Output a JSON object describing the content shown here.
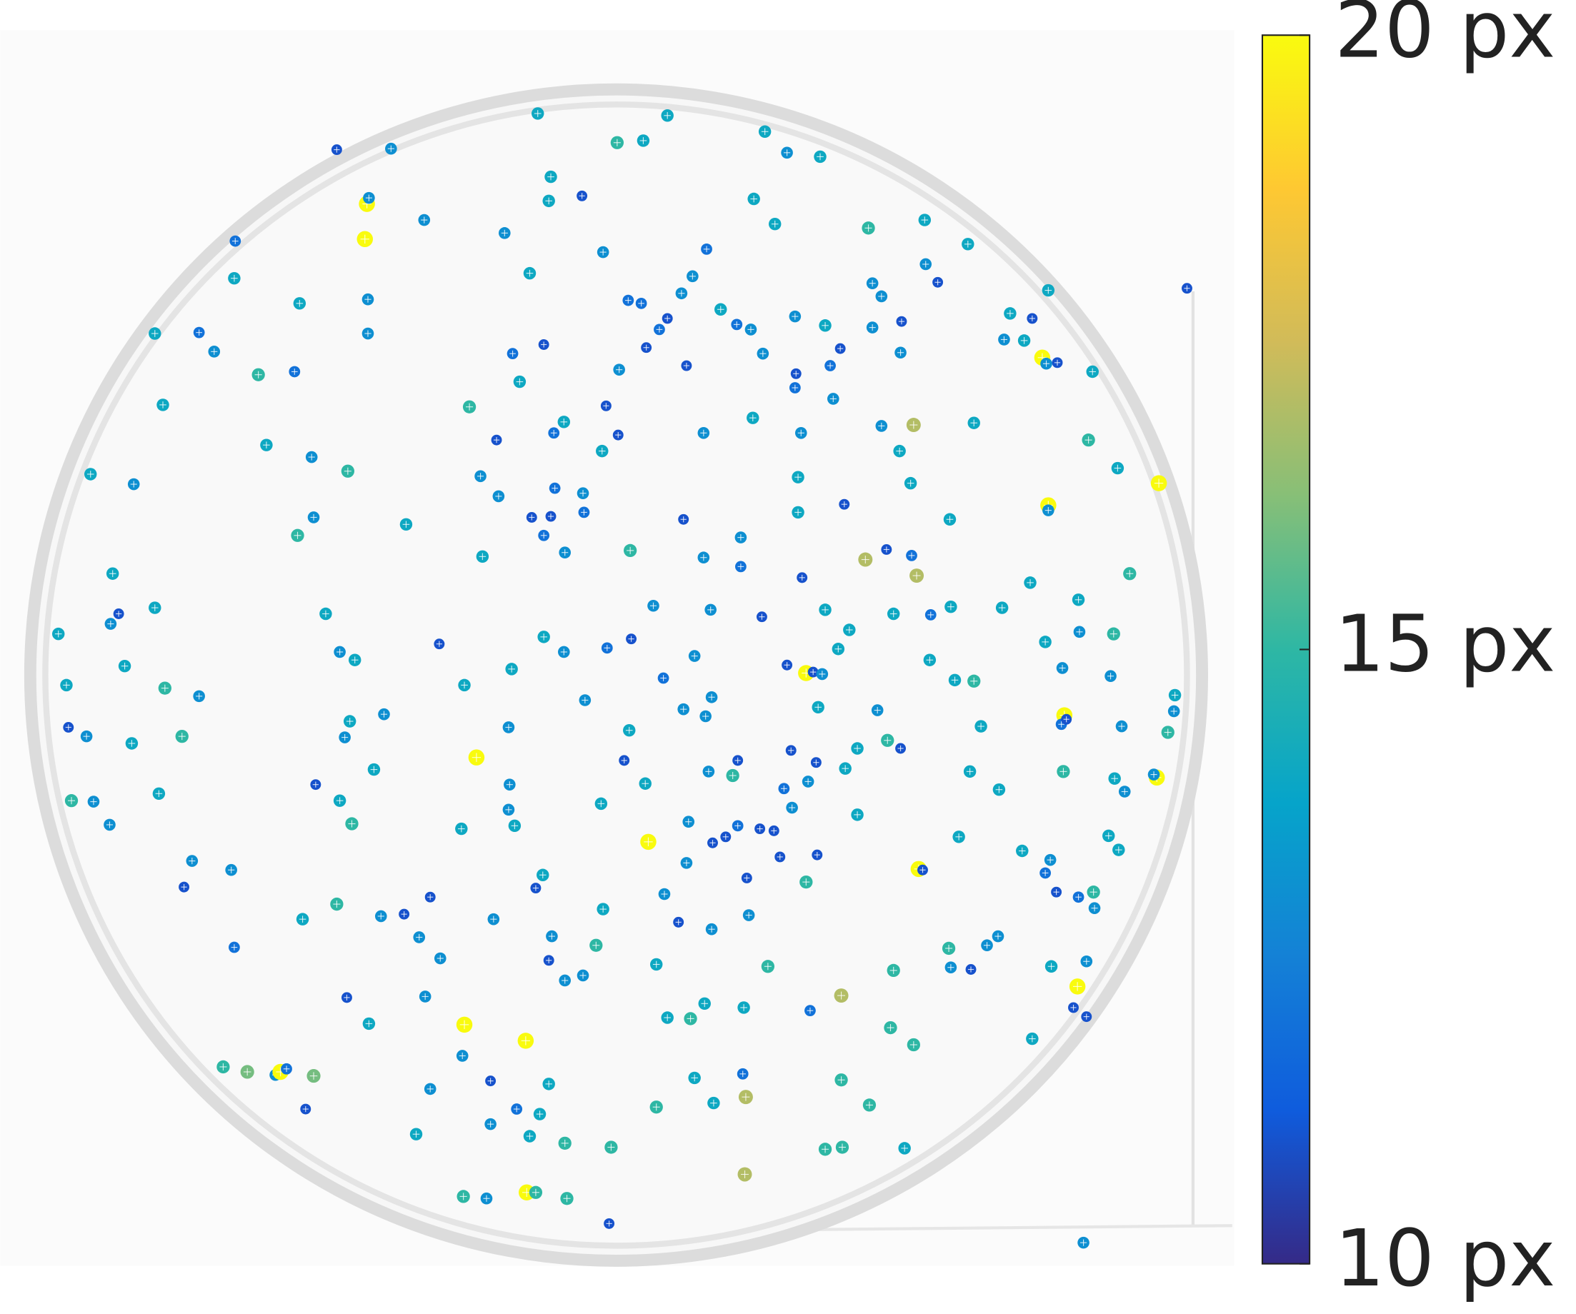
{
  "chart_data": {
    "type": "scatter",
    "y_reversed": true,
    "xlim": [
      0,
      1230
    ],
    "ylim": [
      0,
      1260
    ],
    "colorbar_lim": [
      10,
      20
    ],
    "colorbar_ticks": [
      {
        "value": 10,
        "label": "10 px"
      },
      {
        "value": 15,
        "label": "15 px"
      },
      {
        "value": 20,
        "label": "20 px"
      }
    ],
    "colormap": [
      "#352a87",
      "#0f5cdd",
      "#1481d6",
      "#06a4ca",
      "#2eb7a4",
      "#87bf77",
      "#d1bb59",
      "#fec832",
      "#f9fb0e"
    ],
    "x": [
      535,
      664,
      614,
      640,
      761,
      783,
      816,
      335,
      389,
      548,
      546,
      579,
      750,
      365,
      367,
      363,
      422,
      502,
      234,
      600,
      771,
      864,
      920,
      963,
      921,
      933,
      703,
      689,
      527,
      233,
      298,
      366,
      366,
      154,
      198,
      213,
      257,
      293,
      162,
      625,
      638,
      664,
      656,
      643,
      678,
      717,
      733,
      747,
      759,
      791,
      821,
      836,
      826,
      868,
      877,
      868,
      897,
      896,
      1005,
      1027,
      1019,
      999,
      1043,
      1037,
      1041,
      1052,
      1087,
      1181,
      541,
      510,
      517,
      616,
      683,
      792,
      791,
      829,
      749,
      797,
      467,
      561,
      551,
      603,
      615,
      599,
      494,
      700,
      909,
      877,
      895,
      969,
      1083,
      1112,
      1153,
      1043,
      1043,
      906,
      945,
      346,
      310,
      265,
      90,
      133,
      478,
      496,
      552,
      580,
      529,
      548,
      581,
      541,
      562,
      680,
      794,
      840,
      794,
      737,
      627,
      700,
      737,
      480,
      404,
      312,
      296,
      861,
      882,
      907,
      912,
      798,
      112,
      118,
      110,
      154,
      58,
      124,
      66,
      164,
      198,
      68,
      86,
      131,
      181,
      71,
      93,
      109,
      158,
      324,
      338,
      353,
      437,
      541,
      561,
      604,
      628,
      650,
      707,
      758,
      821,
      845,
      834,
      889,
      926,
      946,
      997,
      1025,
      1073,
      1124,
      1074,
      1040,
      1057,
      1108,
      1105,
      1169,
      1168,
      1162,
      1116,
      1059,
      1056,
      1061,
      1151,
      1148,
      1109,
      1119,
      509,
      462,
      582,
      626,
      660,
      691,
      708,
      680,
      702,
      802,
      783,
      809,
      818,
      814,
      873,
      883,
      896,
      853,
      950,
      969,
      925,
      976,
      965,
      994,
      1058,
      348,
      343,
      382,
      506,
      474,
      621,
      642,
      734,
      705,
      729,
      787,
      812,
      804,
      780,
      788,
      841,
      853,
      372,
      314,
      338,
      350,
      507,
      506,
      512,
      459,
      598,
      685,
      645,
      709,
      722,
      734,
      756,
      770,
      776,
      813,
      683,
      743,
      802,
      914,
      918,
      954,
      1017,
      1103,
      1113,
      1045,
      1040,
      1051,
      1073,
      1088,
      1089,
      191,
      230,
      183,
      540,
      533,
      428,
      600,
      661,
      675,
      708,
      745,
      301,
      335,
      379,
      402,
      417,
      491,
      549,
      593,
      233,
      438,
      546,
      562,
      580,
      653,
      764,
      889,
      944,
      946,
      966,
      982,
      993,
      1046,
      1081,
      1072,
      1068,
      1081,
      345,
      423,
      367,
      462,
      523,
      664,
      687,
      701,
      740,
      806,
      837,
      886,
      909,
      1027,
      460,
      222,
      246,
      274,
      279,
      285,
      312,
      428,
      488,
      546,
      691,
      739,
      837,
      742,
      304,
      514,
      537,
      488,
      653,
      710,
      865,
      414,
      527,
      562,
      608,
      821,
      838,
      900,
      741,
      461,
      484,
      524,
      533,
      564,
      606,
      1078
    ],
    "y": [
      113,
      115,
      142,
      140,
      131,
      152,
      156,
      149,
      148,
      176,
      200,
      195,
      198,
      203,
      197,
      238,
      219,
      232,
      240,
      251,
      223,
      227,
      219,
      243,
      263,
      281,
      248,
      275,
      272,
      277,
      302,
      298,
      332,
      332,
      331,
      350,
      373,
      370,
      403,
      299,
      302,
      317,
      328,
      346,
      292,
      308,
      323,
      328,
      352,
      315,
      324,
      347,
      364,
      282,
      295,
      326,
      320,
      351,
      312,
      317,
      339,
      338,
      289,
      356,
      362,
      361,
      370,
      287,
      343,
      352,
      380,
      368,
      364,
      372,
      386,
      397,
      416,
      431,
      405,
      420,
      431,
      404,
      433,
      449,
      438,
      431,
      423,
      424,
      449,
      421,
      438,
      466,
      481,
      503,
      508,
      481,
      517,
      469,
      455,
      443,
      472,
      482,
      474,
      494,
      486,
      491,
      515,
      514,
      510,
      533,
      550,
      517,
      475,
      502,
      510,
      535,
      548,
      555,
      564,
      554,
      522,
      515,
      533,
      557,
      547,
      553,
      573,
      575,
      571,
      611,
      621,
      605,
      631,
      663,
      682,
      685,
      693,
      724,
      733,
      740,
      733,
      797,
      798,
      821,
      790,
      611,
      649,
      657,
      641,
      634,
      649,
      645,
      636,
      603,
      607,
      614,
      607,
      627,
      646,
      611,
      612,
      604,
      605,
      580,
      597,
      571,
      629,
      639,
      665,
      631,
      673,
      692,
      708,
      729,
      723,
      712,
      721,
      716,
      774,
      771,
      775,
      788,
      666,
      682,
      697,
      727,
      675,
      653,
      694,
      706,
      713,
      670,
      662,
      669,
      671,
      704,
      707,
      737,
      745,
      745,
      677,
      678,
      657,
      723,
      768,
      786,
      768,
      718,
      734,
      711,
      724,
      754,
      757,
      780,
      757,
      768,
      772,
      747,
      759,
      778,
      785,
      804,
      765,
      811,
      766,
      781,
      797,
      820,
      781,
      806,
      822,
      825,
      800,
      818,
      838,
      839,
      833,
      822,
      825,
      827,
      853,
      851,
      859,
      874,
      878,
      865,
      866,
      833,
      847,
      832,
      846,
      856,
      869,
      888,
      893,
      888,
      904,
      857,
      866,
      883,
      871,
      884,
      893,
      905,
      890,
      918,
      925,
      911,
      915,
      900,
      912,
      910,
      933,
      915,
      932,
      941,
      943,
      954,
      956,
      976,
      971,
      960,
      962,
      966,
      944,
      963,
      965,
      941,
      932,
      962,
      957,
      982,
      1003,
      1012,
      993,
      992,
      1019,
      1020,
      1036,
      1013,
      1014,
      999,
      1003,
      1006,
      991,
      1023,
      1040,
      1034,
      1051,
      1062,
      1067,
      1070,
      1067,
      1064,
      1071,
      1084,
      1076,
      1079,
      1073,
      1069,
      1075,
      1092,
      1104,
      1104,
      1109,
      1119,
      1102,
      1098,
      1100,
      1129,
      1131,
      1138,
      1142,
      1144,
      1142,
      1143,
      1169,
      1191,
      1193,
      1187,
      1187,
      1193,
      1218,
      1237
    ],
    "values": [
      14,
      14,
      15,
      14,
      14,
      13,
      14,
      11,
      13,
      14,
      14,
      11,
      14,
      20,
      13,
      20,
      13,
      13,
      12,
      13,
      14,
      15,
      14,
      14,
      13,
      11,
      12,
      13,
      14,
      14,
      14,
      13,
      13,
      14,
      12,
      13,
      15,
      12,
      14,
      12,
      12,
      11,
      12,
      11,
      13,
      14,
      12,
      13,
      13,
      13,
      14,
      11,
      12,
      13,
      13,
      13,
      11,
      13,
      14,
      11,
      14,
      13,
      14,
      20,
      13,
      11,
      14,
      11,
      11,
      12,
      14,
      13,
      11,
      11,
      12,
      13,
      14,
      13,
      15,
      14,
      12,
      11,
      11,
      14,
      11,
      13,
      17,
      13,
      14,
      14,
      15,
      14,
      20,
      20,
      13,
      14,
      14,
      15,
      13,
      14,
      14,
      13,
      13,
      13,
      12,
      13,
      11,
      11,
      12,
      12,
      13,
      11,
      14,
      11,
      14,
      13,
      15,
      13,
      12,
      14,
      14,
      13,
      15,
      17,
      11,
      12,
      17,
      11,
      14,
      11,
      13,
      14,
      14,
      14,
      14,
      15,
      13,
      11,
      13,
      14,
      15,
      15,
      13,
      13,
      14,
      14,
      13,
      14,
      11,
      14,
      13,
      12,
      11,
      13,
      13,
      11,
      14,
      14,
      14,
      14,
      12,
      14,
      14,
      14,
      14,
      15,
      13,
      14,
      13,
      15,
      13,
      14,
      13,
      15,
      13,
      20,
      12,
      11,
      20,
      13,
      14,
      13,
      14,
      14,
      13,
      14,
      12,
      13,
      13,
      13,
      13,
      20,
      11,
      11,
      13,
      14,
      13,
      15,
      11,
      14,
      14,
      15,
      14,
      14,
      14,
      14,
      15,
      14,
      13,
      13,
      13,
      20,
      11,
      14,
      11,
      13,
      15,
      11,
      11,
      13,
      12,
      13,
      14,
      14,
      14,
      11,
      14,
      15,
      13,
      13,
      14,
      14,
      14,
      13,
      20,
      11,
      11,
      12,
      11,
      11,
      11,
      11,
      13,
      11,
      15,
      20,
      11,
      14,
      14,
      14,
      14,
      13,
      12,
      11,
      12,
      15,
      13,
      13,
      13,
      11,
      14,
      11,
      11,
      14,
      13,
      11,
      13,
      13,
      14,
      15,
      13,
      11,
      13,
      13,
      13,
      15,
      12,
      13,
      11,
      13,
      13,
      14,
      15,
      15,
      15,
      13,
      11,
      13,
      13,
      14,
      13,
      20,
      11,
      11,
      11,
      13,
      14,
      20,
      20,
      14,
      15,
      14,
      14,
      12,
      17,
      15,
      15,
      14,
      13,
      15,
      16,
      13,
      20,
      12,
      16,
      13,
      11,
      14,
      14,
      12,
      15,
      17,
      11,
      12,
      14,
      13,
      15,
      14,
      15,
      14,
      14,
      15,
      15,
      15,
      15,
      14,
      17,
      15,
      13,
      20,
      15,
      15,
      11,
      13
    ]
  }
}
